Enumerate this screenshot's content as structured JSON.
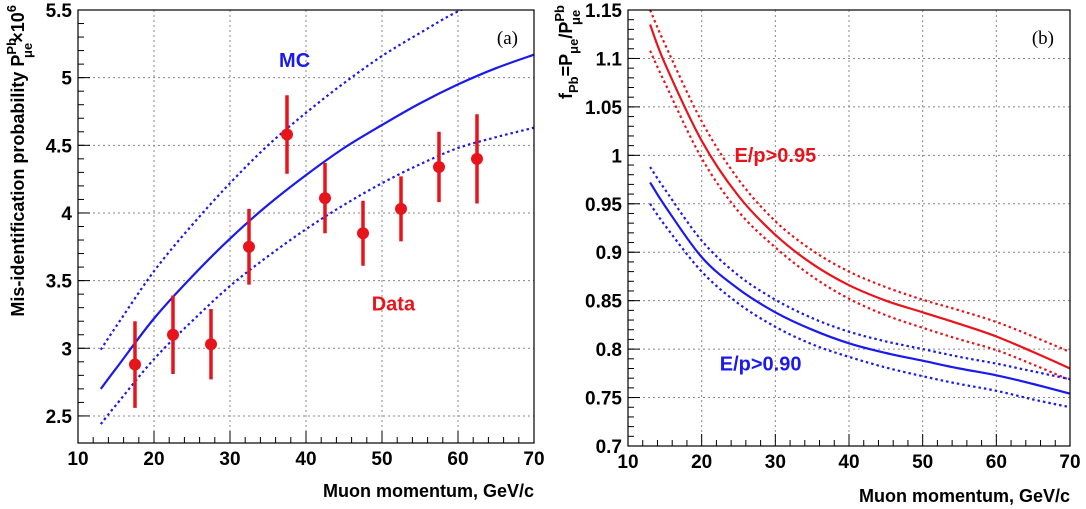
{
  "chart_data": [
    {
      "type": "scatter",
      "panel_label": "(a)",
      "xlabel": "Muon momentum, GeV/c",
      "ylabel_parts": {
        "main": "Mis-identification probability ",
        "symbol": "P",
        "sub": "μe",
        "sup": "Pb",
        "suffix": "×10",
        "exp": "6"
      },
      "xlim": [
        10,
        70
      ],
      "ylim": [
        2.3,
        5.5
      ],
      "xticks": [
        10,
        20,
        30,
        40,
        50,
        60,
        70
      ],
      "yticks": [
        2.5,
        3,
        3.5,
        4,
        4.5,
        5,
        5.5
      ],
      "ytick_labels": [
        "2.5",
        "3",
        "3.5",
        "4",
        "4.5",
        "5",
        "5.5"
      ],
      "grid": true,
      "series": [
        {
          "name": "Data",
          "color": "#e8141c",
          "style": "points-with-errors",
          "x": [
            17.5,
            22.5,
            27.5,
            32.5,
            37.5,
            42.5,
            47.5,
            52.5,
            57.5,
            62.5
          ],
          "y": [
            2.88,
            3.1,
            3.03,
            3.75,
            4.58,
            4.11,
            3.85,
            4.03,
            4.34,
            4.4
          ],
          "err": [
            0.32,
            0.29,
            0.26,
            0.28,
            0.29,
            0.26,
            0.24,
            0.24,
            0.26,
            0.33
          ]
        },
        {
          "name": "MC",
          "color": "#1a1aee",
          "style": "solid",
          "x": [
            13,
            15,
            20,
            25,
            30,
            35,
            40,
            45,
            50,
            55,
            60,
            65,
            70
          ],
          "y": [
            2.7,
            2.85,
            3.22,
            3.53,
            3.81,
            4.06,
            4.28,
            4.48,
            4.65,
            4.81,
            4.95,
            5.07,
            5.17
          ]
        },
        {
          "name": "MC upper",
          "color": "#1a1aee",
          "style": "dotted",
          "x": [
            13,
            15,
            20,
            25,
            30,
            35,
            40,
            45,
            50,
            55,
            60,
            65,
            70
          ],
          "y": [
            2.99,
            3.16,
            3.57,
            3.91,
            4.22,
            4.5,
            4.74,
            4.96,
            5.16,
            5.33,
            5.49,
            5.6,
            5.72
          ]
        },
        {
          "name": "MC lower",
          "color": "#1a1aee",
          "style": "dotted",
          "x": [
            13,
            15,
            20,
            25,
            30,
            35,
            40,
            45,
            50,
            55,
            60,
            65,
            70
          ],
          "y": [
            2.44,
            2.58,
            2.92,
            3.2,
            3.46,
            3.68,
            3.88,
            4.06,
            4.22,
            4.36,
            4.48,
            4.56,
            4.63
          ]
        }
      ],
      "annotations": [
        {
          "text": "MC",
          "x": 38.5,
          "y": 5.08,
          "color": "#1a1aee"
        },
        {
          "text": "Data",
          "x": 51.5,
          "y": 3.28,
          "color": "#e8141c"
        }
      ]
    },
    {
      "type": "line",
      "panel_label": "(b)",
      "xlabel": "Muon momentum, GeV/c",
      "ylabel_parts": {
        "pre": "f",
        "pre_sub": "Pb",
        "eq": "=P",
        "mid_sub": "μe",
        "slash": "/P",
        "end_sup": "Pb",
        "end_sub": "μe"
      },
      "xlim": [
        10,
        70
      ],
      "ylim": [
        0.7,
        1.15
      ],
      "xticks": [
        10,
        20,
        30,
        40,
        50,
        60,
        70
      ],
      "yticks": [
        0.7,
        0.75,
        0.8,
        0.85,
        0.9,
        0.95,
        1.0,
        1.05,
        1.1,
        1.15
      ],
      "ytick_labels": [
        "0.7",
        "0.75",
        "0.8",
        "0.85",
        "0.9",
        "0.95",
        "1",
        "1.05",
        "1.1",
        "1.15"
      ],
      "grid": true,
      "series": [
        {
          "name": "E/p>0.95",
          "color": "#e8141c",
          "style": "solid",
          "x": [
            13,
            15,
            20,
            25,
            30,
            35,
            40,
            45,
            50,
            55,
            60,
            65,
            70
          ],
          "y": [
            1.135,
            1.095,
            1.015,
            0.958,
            0.918,
            0.888,
            0.866,
            0.85,
            0.838,
            0.826,
            0.813,
            0.797,
            0.78
          ]
        },
        {
          "name": "E/p>0.95 upper",
          "color": "#e8141c",
          "style": "dotted",
          "x": [
            13,
            15,
            20,
            25,
            30,
            35,
            40,
            45,
            50,
            55,
            60,
            65,
            70
          ],
          "y": [
            1.15,
            1.115,
            1.035,
            0.975,
            0.932,
            0.902,
            0.88,
            0.864,
            0.851,
            0.84,
            0.828,
            0.813,
            0.797
          ]
        },
        {
          "name": "E/p>0.95 lower",
          "color": "#e8141c",
          "style": "dotted",
          "x": [
            13,
            15,
            20,
            25,
            30,
            35,
            40,
            45,
            50,
            55,
            60,
            65,
            70
          ],
          "y": [
            1.108,
            1.075,
            0.997,
            0.942,
            0.905,
            0.875,
            0.852,
            0.835,
            0.822,
            0.81,
            0.799,
            0.784,
            0.768
          ]
        },
        {
          "name": "E/p>0.90",
          "color": "#1a1aee",
          "style": "solid",
          "x": [
            13,
            15,
            20,
            25,
            30,
            35,
            40,
            45,
            50,
            55,
            60,
            65,
            70
          ],
          "y": [
            0.972,
            0.948,
            0.895,
            0.862,
            0.838,
            0.82,
            0.806,
            0.796,
            0.788,
            0.78,
            0.773,
            0.764,
            0.754
          ]
        },
        {
          "name": "E/p>0.90 upper",
          "color": "#1a1aee",
          "style": "dotted",
          "x": [
            13,
            15,
            20,
            25,
            30,
            35,
            40,
            45,
            50,
            55,
            60,
            65,
            70
          ],
          "y": [
            0.988,
            0.965,
            0.912,
            0.876,
            0.851,
            0.832,
            0.818,
            0.808,
            0.8,
            0.792,
            0.785,
            0.777,
            0.769
          ]
        },
        {
          "name": "E/p>0.90 lower",
          "color": "#1a1aee",
          "style": "dotted",
          "x": [
            13,
            15,
            20,
            25,
            30,
            35,
            40,
            45,
            50,
            55,
            60,
            65,
            70
          ],
          "y": [
            0.95,
            0.928,
            0.88,
            0.847,
            0.823,
            0.805,
            0.792,
            0.781,
            0.772,
            0.764,
            0.757,
            0.748,
            0.74
          ]
        }
      ],
      "annotations": [
        {
          "text": "E/p>0.95",
          "x": 30,
          "y": 0.993,
          "color": "#e8141c"
        },
        {
          "text": "E/p>0.90",
          "x": 28,
          "y": 0.778,
          "color": "#1a1aee"
        }
      ]
    }
  ]
}
